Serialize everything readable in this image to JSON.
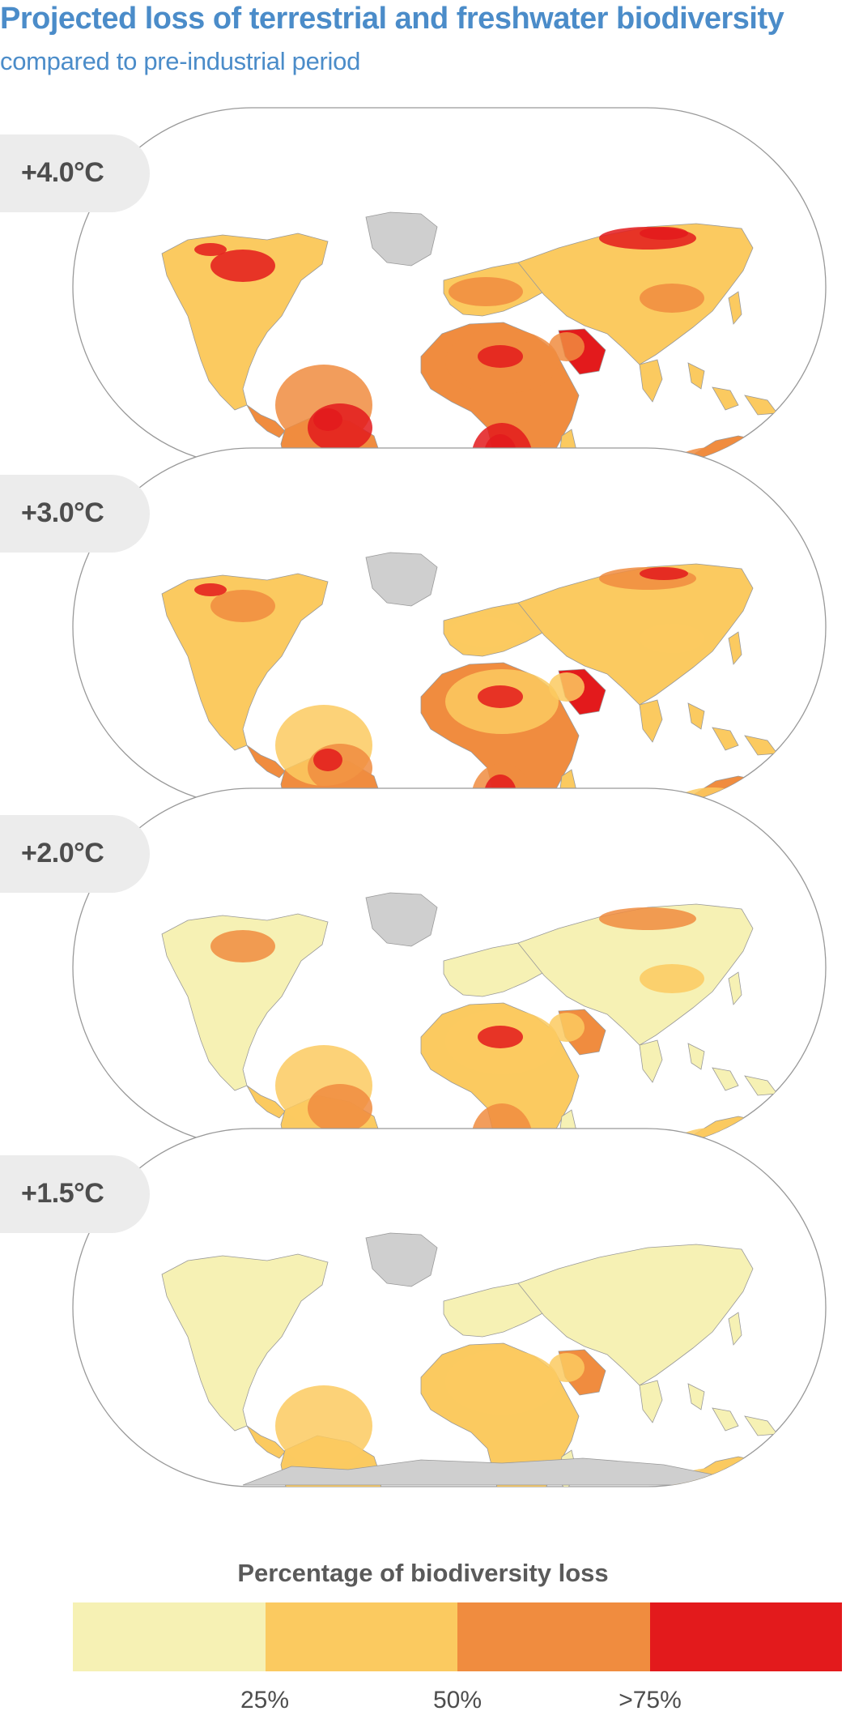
{
  "title": "Projected loss of terrestrial and freshwater biodiversity",
  "subtitle": "compared to pre-industrial period",
  "panels": [
    {
      "label": "+4.0°C",
      "intensity": 3
    },
    {
      "label": "+3.0°C",
      "intensity": 2
    },
    {
      "label": "+2.0°C",
      "intensity": 1
    },
    {
      "label": "+1.5°C",
      "intensity": 0
    }
  ],
  "legend": {
    "title": "Percentage of biodiversity loss",
    "colors": [
      "#f6f1b4",
      "#fbca60",
      "#f08c3f",
      "#e31a1c"
    ],
    "ticks": [
      "25%",
      "50%",
      ">75%"
    ]
  },
  "colors": {
    "title": "#4b8cc9",
    "ice": "#cfcfcf",
    "outline": "#999999"
  }
}
